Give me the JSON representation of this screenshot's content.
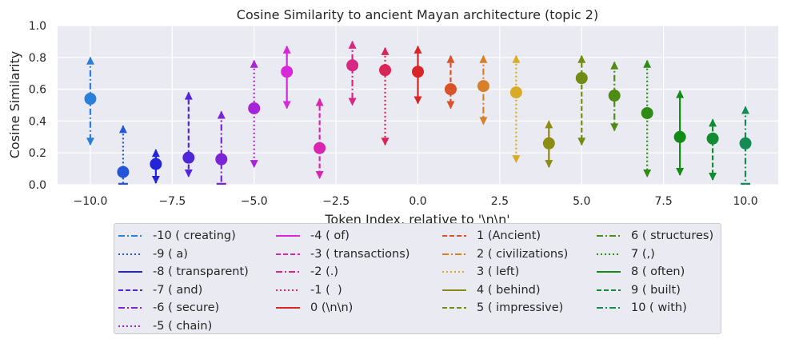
{
  "chart_data": {
    "type": "errorbar",
    "title": "Cosine Similarity to ancient Mayan architecture (topic 2)",
    "xlabel": "Token Index, relative to '\\n\\n'",
    "ylabel": "Cosine Similarity",
    "xlim": [
      -11,
      11
    ],
    "ylim": [
      0.0,
      1.0
    ],
    "xticks": [
      -10.0,
      -7.5,
      -5.0,
      -2.5,
      0.0,
      2.5,
      5.0,
      7.5,
      10.0
    ],
    "xtick_labels": [
      "−10.0",
      "−7.5",
      "−5.0",
      "−2.5",
      "0.0",
      "2.5",
      "5.0",
      "7.5",
      "10.0"
    ],
    "yticks": [
      0.0,
      0.2,
      0.4,
      0.6,
      0.8,
      1.0
    ],
    "ytick_labels": [
      "0.0",
      "0.2",
      "0.4",
      "0.6",
      "0.8",
      "1.0"
    ],
    "grid": true,
    "legend_placement": "below",
    "series": [
      {
        "name": "-10 ( creating)",
        "x": -10,
        "y": 0.54,
        "upper": 0.8,
        "lower": 0.25,
        "color": "#2a7fd8",
        "style": "dashdot"
      },
      {
        "name": "-9 ( a)",
        "x": -9,
        "y": 0.08,
        "upper": 0.37,
        "lower": 0.0,
        "color": "#2457d8",
        "style": "dotted"
      },
      {
        "name": "-8 ( transparent)",
        "x": -8,
        "y": 0.13,
        "upper": 0.22,
        "lower": 0.01,
        "color": "#2323d8",
        "style": "solid"
      },
      {
        "name": "-7 ( and)",
        "x": -7,
        "y": 0.17,
        "upper": 0.58,
        "lower": 0.05,
        "color": "#5027d8",
        "style": "dashed"
      },
      {
        "name": "-6 ( secure)",
        "x": -6,
        "y": 0.16,
        "upper": 0.46,
        "lower": -0.15,
        "color": "#7b25d6",
        "style": "dashdot"
      },
      {
        "name": "-5 ( chain)",
        "x": -5,
        "y": 0.48,
        "upper": 0.78,
        "lower": 0.11,
        "color": "#a824d8",
        "style": "dotted"
      },
      {
        "name": "-4 ( of)",
        "x": -4,
        "y": 0.71,
        "upper": 0.87,
        "lower": 0.48,
        "color": "#d827d8",
        "style": "solid"
      },
      {
        "name": "-3 ( transactions)",
        "x": -3,
        "y": 0.23,
        "upper": 0.54,
        "lower": 0.04,
        "color": "#d826b0",
        "style": "dashed"
      },
      {
        "name": "-2 (.)",
        "x": -2,
        "y": 0.75,
        "upper": 0.9,
        "lower": 0.5,
        "color": "#d82683",
        "style": "dashdot"
      },
      {
        "name": "-1 (  )",
        "x": -1,
        "y": 0.72,
        "upper": 0.86,
        "lower": 0.25,
        "color": "#d82655",
        "style": "dotted"
      },
      {
        "name": "0 (\\n\\n)",
        "x": 0,
        "y": 0.71,
        "upper": 0.87,
        "lower": 0.51,
        "color": "#d82628",
        "style": "solid"
      },
      {
        "name": "1 (Ancient)",
        "x": 1,
        "y": 0.6,
        "upper": 0.81,
        "lower": 0.48,
        "color": "#d8522a",
        "style": "dashed"
      },
      {
        "name": "2 ( civilizations)",
        "x": 2,
        "y": 0.62,
        "upper": 0.81,
        "lower": 0.38,
        "color": "#d87f27",
        "style": "dashdot"
      },
      {
        "name": "3 ( left)",
        "x": 3,
        "y": 0.58,
        "upper": 0.81,
        "lower": 0.14,
        "color": "#d8ab27",
        "style": "dotted"
      },
      {
        "name": "4 ( behind)",
        "x": 4,
        "y": 0.26,
        "upper": 0.4,
        "lower": 0.11,
        "color": "#8c8c14",
        "style": "solid"
      },
      {
        "name": "5 ( impressive)",
        "x": 5,
        "y": 0.67,
        "upper": 0.81,
        "lower": 0.25,
        "color": "#6f8c14",
        "style": "dashed"
      },
      {
        "name": "6 ( structures)",
        "x": 6,
        "y": 0.56,
        "upper": 0.77,
        "lower": 0.34,
        "color": "#4e8c14",
        "style": "dashdot"
      },
      {
        "name": "7 (,)",
        "x": 7,
        "y": 0.45,
        "upper": 0.78,
        "lower": 0.05,
        "color": "#2e8c14",
        "style": "dotted"
      },
      {
        "name": "8 ( often)",
        "x": 8,
        "y": 0.3,
        "upper": 0.59,
        "lower": 0.06,
        "color": "#128c14",
        "style": "solid"
      },
      {
        "name": "9 ( built)",
        "x": 9,
        "y": 0.29,
        "upper": 0.41,
        "lower": 0.03,
        "color": "#128c32",
        "style": "dashed"
      },
      {
        "name": "10 ( with)",
        "x": 10,
        "y": 0.26,
        "upper": 0.49,
        "lower": 0.0,
        "color": "#128c52",
        "style": "dashdot"
      }
    ]
  }
}
